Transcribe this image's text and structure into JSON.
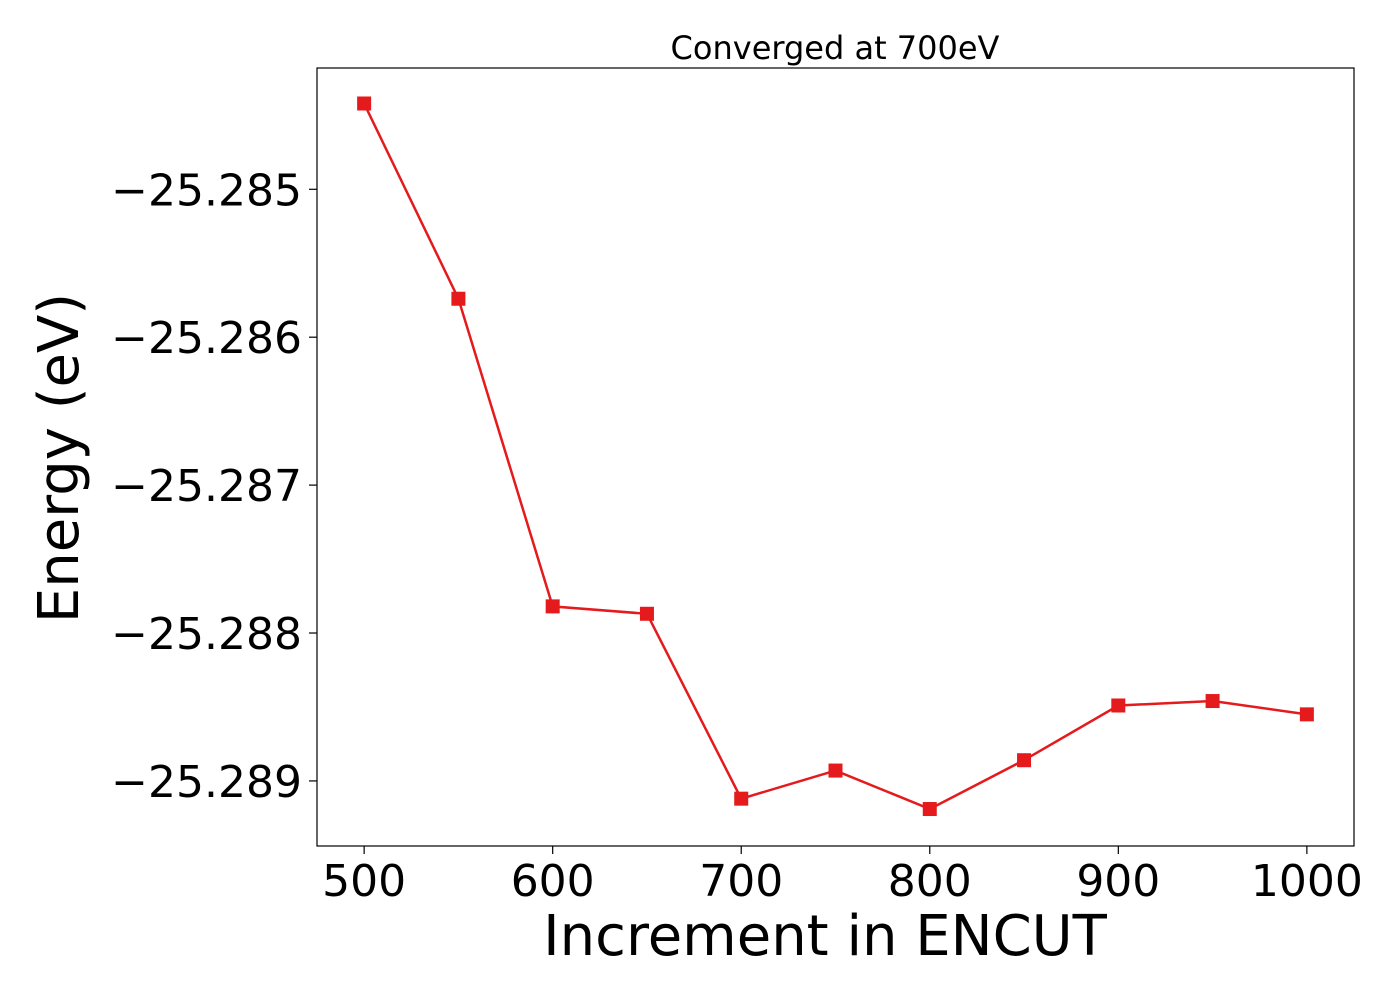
{
  "chart_data": {
    "type": "line",
    "title": "Converged at 700eV",
    "xlabel": "Increment in ENCUT",
    "ylabel": "Energy (eV)",
    "xlim": [
      475,
      1025
    ],
    "ylim": [
      -25.28944,
      -25.28418
    ],
    "x_ticks": [
      500,
      600,
      700,
      800,
      900,
      1000
    ],
    "y_ticks": [
      -25.285,
      -25.286,
      -25.287,
      -25.288,
      -25.289
    ],
    "y_tick_labels": [
      "−25.285",
      "−25.286",
      "−25.287",
      "−25.288",
      "−25.289"
    ],
    "grid": false,
    "legend": "none",
    "series": [
      {
        "color": "#e41a1c",
        "marker": "square",
        "x": [
          500,
          550,
          600,
          650,
          700,
          750,
          800,
          850,
          900,
          950,
          1000
        ],
        "y": [
          -25.28442,
          -25.28574,
          -25.28782,
          -25.28787,
          -25.28912,
          -25.28893,
          -25.28919,
          -25.28886,
          -25.28849,
          -25.28846,
          -25.28855
        ]
      }
    ]
  }
}
